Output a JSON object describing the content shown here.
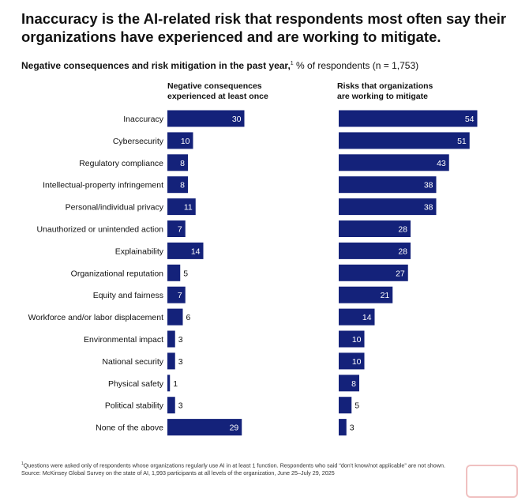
{
  "title": "Inaccuracy is the AI-related risk that respondents most often say their organizations have experienced and are working to mitigate.",
  "subtitle_bold": "Negative consequences and risk mitigation in the past year,",
  "subtitle_sup": "1",
  "subtitle_rest": " % of respondents (n = 1,753)",
  "footnote_sup": "1",
  "footnote": "Questions were asked only of respondents whose organizations regularly use AI in at least 1 function. Respondents who said “don’t know/not applicable” are not shown.",
  "source": "Source: McKinsey Global Survey on the state of AI, 1,993 participants at all levels of the organization, June 25–July 29, 2025",
  "colors": {
    "bar": "#14227a",
    "label_inside": "#ffffff",
    "label_outside": "#111111"
  },
  "chart_data": {
    "type": "bar",
    "orientation": "horizontal",
    "categories": [
      "Inaccuracy",
      "Cybersecurity",
      "Regulatory compliance",
      "Intellectual-property infringement",
      "Personal/individual privacy",
      "Unauthorized or unintended action",
      "Explainability",
      "Organizational reputation",
      "Equity and fairness",
      "Workforce and/or labor displacement",
      "Environmental impact",
      "National security",
      "Physical safety",
      "Political stability",
      "None of the above"
    ],
    "series": [
      {
        "name": "Negative consequences experienced at least once",
        "name_lines": [
          "Negative consequences",
          "experienced at least once"
        ],
        "values": [
          30,
          10,
          8,
          8,
          11,
          7,
          14,
          5,
          7,
          6,
          3,
          3,
          1,
          3,
          29
        ]
      },
      {
        "name": "Risks that organizations are working to mitigate",
        "name_lines": [
          "Risks that organizations",
          "are working to mitigate"
        ],
        "values": [
          54,
          51,
          43,
          38,
          38,
          28,
          28,
          27,
          21,
          14,
          10,
          10,
          8,
          5,
          3
        ]
      }
    ],
    "xlim": [
      0,
      60
    ],
    "grid": false,
    "legend": "column headers above each panel"
  }
}
